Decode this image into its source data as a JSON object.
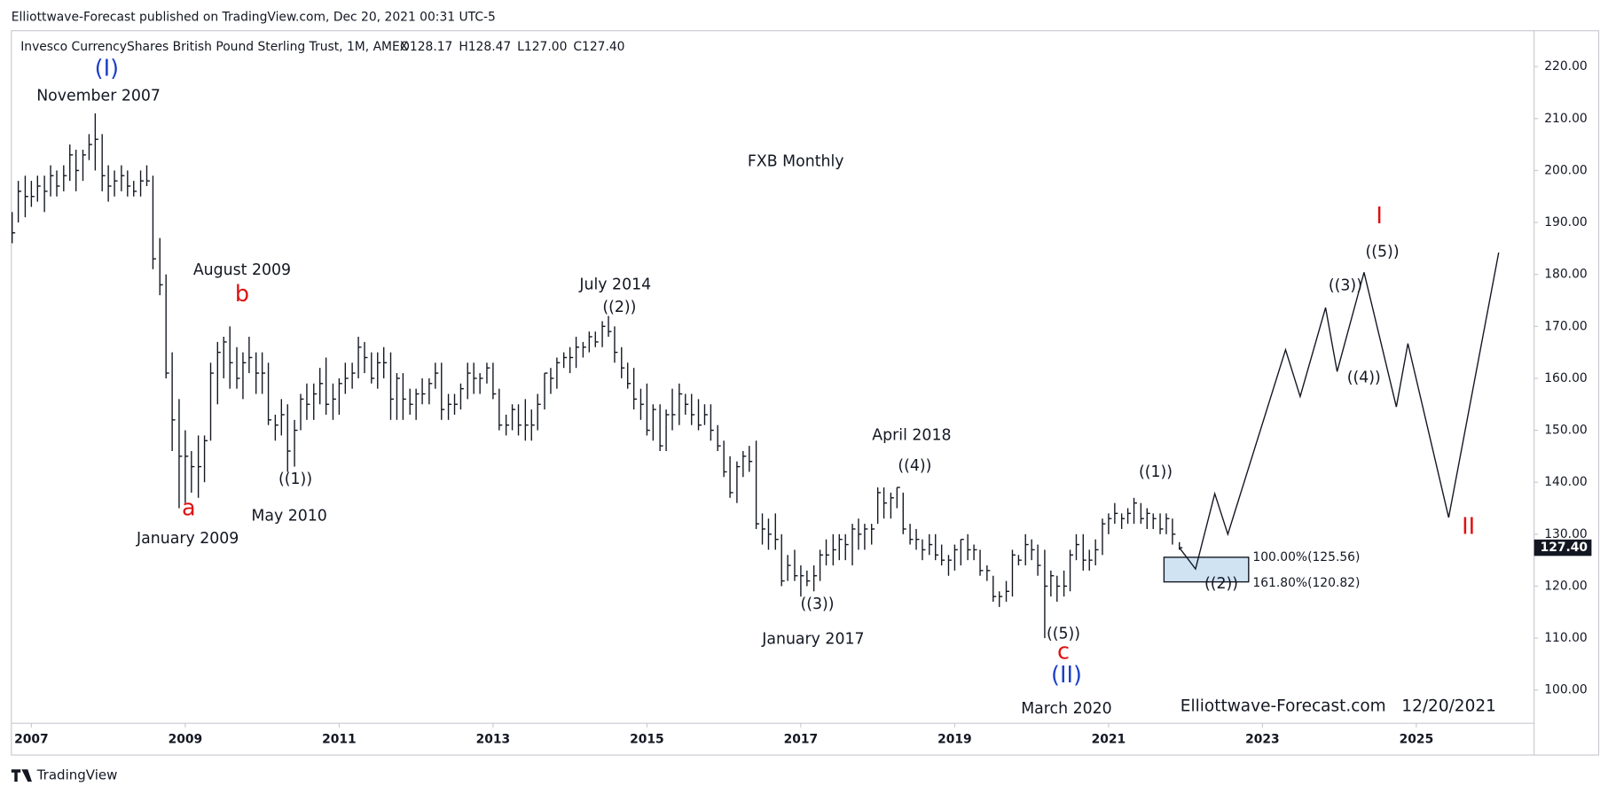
{
  "chart_data": {
    "type": "ohlc",
    "header": "Elliottwave-Forecast published on TradingView.com, Dec 20, 2021 00:31 UTC-5",
    "symbol": "Invesco CurrencyShares British Pound Sterling Trust, 1M, AMEX",
    "ohlc_legend": [
      "O128.17",
      "H128.47",
      "L127.00",
      "C127.40"
    ],
    "title": "FXB Monthly",
    "watermark": "Elliottwave-Forecast.com   12/20/2021",
    "footer": "TradingView",
    "color": "#131722",
    "x": [
      2006.75,
      2006.83,
      2006.92,
      2007.0,
      2007.08,
      2007.17,
      2007.25,
      2007.33,
      2007.42,
      2007.5,
      2007.58,
      2007.67,
      2007.75,
      2007.83,
      2007.92,
      2008.0,
      2008.08,
      2008.17,
      2008.25,
      2008.33,
      2008.42,
      2008.5,
      2008.58,
      2008.67,
      2008.75,
      2008.83,
      2008.92,
      2009.0,
      2009.08,
      2009.17,
      2009.25,
      2009.33,
      2009.42,
      2009.5,
      2009.58,
      2009.67,
      2009.75,
      2009.83,
      2009.92,
      2010.0,
      2010.08,
      2010.17,
      2010.25,
      2010.33,
      2010.42,
      2010.5,
      2010.58,
      2010.67,
      2010.75,
      2010.83,
      2010.92,
      2011.0,
      2011.08,
      2011.17,
      2011.25,
      2011.33,
      2011.42,
      2011.5,
      2011.58,
      2011.67,
      2011.75,
      2011.83,
      2011.92,
      2012.0,
      2012.08,
      2012.17,
      2012.25,
      2012.33,
      2012.42,
      2012.5,
      2012.58,
      2012.67,
      2012.75,
      2012.83,
      2012.92,
      2013.0,
      2013.08,
      2013.17,
      2013.25,
      2013.33,
      2013.42,
      2013.5,
      2013.58,
      2013.67,
      2013.75,
      2013.83,
      2013.92,
      2014.0,
      2014.08,
      2014.17,
      2014.25,
      2014.33,
      2014.42,
      2014.5,
      2014.58,
      2014.67,
      2014.75,
      2014.83,
      2014.92,
      2015.0,
      2015.08,
      2015.17,
      2015.25,
      2015.33,
      2015.42,
      2015.5,
      2015.58,
      2015.67,
      2015.75,
      2015.83,
      2015.92,
      2016.0,
      2016.08,
      2016.17,
      2016.25,
      2016.33,
      2016.42,
      2016.5,
      2016.58,
      2016.67,
      2016.75,
      2016.83,
      2016.92,
      2017.0,
      2017.08,
      2017.17,
      2017.25,
      2017.33,
      2017.42,
      2017.5,
      2017.58,
      2017.67,
      2017.75,
      2017.83,
      2017.92,
      2018.0,
      2018.08,
      2018.17,
      2018.25,
      2018.33,
      2018.42,
      2018.5,
      2018.58,
      2018.67,
      2018.75,
      2018.83,
      2018.92,
      2019.0,
      2019.08,
      2019.17,
      2019.25,
      2019.33,
      2019.42,
      2019.5,
      2019.58,
      2019.67,
      2019.75,
      2019.83,
      2019.92,
      2020.0,
      2020.08,
      2020.17,
      2020.25,
      2020.33,
      2020.42,
      2020.5,
      2020.58,
      2020.67,
      2020.75,
      2020.83,
      2020.92,
      2021.0,
      2021.08,
      2021.17,
      2021.25,
      2021.33,
      2021.42,
      2021.5,
      2021.58,
      2021.67,
      2021.75,
      2021.83,
      2021.92
    ],
    "high": [
      192,
      198,
      199,
      198,
      199,
      199,
      201,
      200,
      201,
      205,
      204,
      204,
      207,
      211,
      207,
      201,
      200,
      201,
      200,
      198,
      200,
      201,
      199,
      187,
      180,
      165,
      156,
      150,
      146,
      149,
      149,
      163,
      167,
      168,
      170,
      166,
      165,
      168,
      165,
      165,
      163,
      153,
      156,
      155,
      152,
      157,
      159,
      159,
      162,
      164,
      159,
      160,
      163,
      163,
      168,
      167,
      165,
      165,
      166,
      165,
      161,
      161,
      158,
      158,
      160,
      160,
      163,
      163,
      157,
      157,
      159,
      163,
      163,
      161,
      163,
      163,
      158,
      153,
      155,
      155,
      156,
      154,
      157,
      161,
      162,
      164,
      165,
      166,
      168,
      167,
      169,
      169,
      171,
      172,
      170,
      166,
      163,
      162,
      158,
      159,
      155,
      155,
      154,
      158,
      159,
      157,
      157,
      156,
      155,
      155,
      151,
      148,
      145,
      144,
      146,
      147,
      148,
      134,
      133,
      134,
      130,
      126,
      127,
      124,
      123,
      124,
      127,
      129,
      130,
      130,
      130,
      132,
      133,
      132,
      132,
      139,
      139,
      138,
      139,
      138,
      132,
      131,
      129,
      130,
      130,
      128,
      126,
      128,
      129,
      130,
      128,
      127,
      124,
      122,
      119,
      121,
      127,
      126,
      130,
      129,
      128,
      127,
      123,
      122,
      123,
      127,
      130,
      130,
      127,
      129,
      133,
      134,
      136,
      134,
      135,
      137,
      136,
      135,
      134,
      134,
      134,
      133,
      128.47
    ],
    "low": [
      186,
      190,
      191,
      193,
      194,
      192,
      195,
      195,
      196,
      198,
      196,
      198,
      202,
      200,
      196,
      194,
      195,
      196,
      195,
      195,
      195,
      197,
      181,
      176,
      160,
      146,
      135,
      136,
      138,
      137,
      140,
      148,
      155,
      160,
      158,
      158,
      156,
      161,
      157,
      157,
      151,
      148,
      149,
      142,
      143,
      150,
      152,
      152,
      155,
      153,
      152,
      153,
      157,
      158,
      160,
      161,
      159,
      158,
      160,
      152,
      152,
      152,
      153,
      152,
      155,
      155,
      158,
      152,
      152,
      153,
      154,
      156,
      157,
      157,
      159,
      156,
      150,
      149,
      150,
      149,
      148,
      148,
      150,
      154,
      157,
      158,
      162,
      161,
      162,
      164,
      165,
      166,
      166,
      168,
      163,
      160,
      158,
      154,
      152,
      149,
      148,
      146,
      146,
      150,
      151,
      153,
      151,
      150,
      151,
      148,
      146,
      141,
      137,
      136,
      141,
      142,
      131,
      128,
      127,
      127,
      120,
      121,
      121,
      118,
      120,
      119,
      121,
      124,
      124,
      125,
      125,
      124,
      127,
      127,
      128,
      132,
      133,
      133,
      135,
      130,
      128,
      127,
      125,
      126,
      125,
      124,
      122,
      123,
      124,
      125,
      125,
      122,
      121,
      117,
      116,
      117,
      118,
      124,
      124,
      125,
      122,
      110,
      118,
      117,
      118,
      119,
      125,
      123,
      123,
      124,
      126,
      130,
      132,
      131,
      132,
      132,
      132,
      131,
      131,
      130,
      130,
      128,
      127
    ],
    "close": [
      188,
      196,
      195,
      195,
      197,
      196,
      199,
      197,
      199,
      203,
      200,
      203,
      205,
      206,
      199,
      197,
      198,
      199,
      197,
      196,
      198,
      198,
      183,
      178,
      161,
      152,
      145,
      145,
      143,
      143,
      148,
      161,
      165,
      167,
      163,
      160,
      163,
      164,
      161,
      161,
      152,
      151,
      153,
      146,
      150,
      156,
      155,
      157,
      159,
      155,
      156,
      159,
      160,
      161,
      166,
      164,
      160,
      163,
      163,
      156,
      160,
      156,
      155,
      157,
      157,
      159,
      161,
      154,
      155,
      155,
      158,
      161,
      160,
      160,
      162,
      157,
      151,
      151,
      154,
      151,
      151,
      151,
      155,
      161,
      160,
      163,
      164,
      164,
      166,
      166,
      168,
      167,
      170,
      169,
      165,
      162,
      159,
      156,
      155,
      150,
      154,
      147,
      153,
      153,
      157,
      155,
      153,
      151,
      153,
      150,
      147,
      142,
      138,
      143,
      145,
      144,
      132,
      131,
      130,
      129,
      121,
      124,
      122,
      122,
      121,
      122,
      126,
      126,
      127,
      129,
      128,
      131,
      130,
      131,
      131,
      138,
      136,
      137,
      139,
      131,
      129,
      129,
      127,
      128,
      126,
      125,
      125,
      127,
      129,
      127,
      127,
      123,
      123,
      118,
      118,
      119,
      126,
      125,
      128,
      127,
      124,
      120,
      122,
      120,
      120,
      126,
      128,
      125,
      125,
      127,
      132,
      133,
      134,
      133,
      134,
      136,
      133,
      134,
      133,
      131,
      133,
      130,
      127.4
    ],
    "last_price": {
      "value": 127.4,
      "label": "127.40"
    },
    "projection": {
      "x": [
        2021.92,
        2022.13,
        2022.38,
        2022.55,
        2023.3,
        2023.49,
        2023.82,
        2023.97,
        2024.32,
        2024.74,
        2024.89,
        2025.42,
        2026.07
      ],
      "y": [
        127.4,
        123.3,
        137.8,
        130.0,
        165.5,
        156.5,
        173.6,
        161.3,
        180.4,
        154.5,
        166.7,
        133.2,
        184.2
      ]
    },
    "fib_box": {
      "x0": 2021.72,
      "x1": 2022.82,
      "top": 125.56,
      "bottom": 120.82,
      "color": "#cfe3f3",
      "labels": [
        "100.00%(125.56)",
        "161.80%(120.82)"
      ]
    },
    "annotations": [
      "(I)",
      "November 2007",
      "August 2009",
      "b",
      "a",
      "January 2009",
      "((1))",
      "May 2010",
      "July 2014",
      "((2))",
      "April 2018",
      "((4))",
      "((3))",
      "January 2017",
      "((5))",
      "c",
      "(II)",
      "March 2020",
      "((1))",
      "((2))",
      "((3))",
      "((5))",
      "((4))",
      "I",
      "II"
    ],
    "xlim": [
      2006.74,
      2026.53
    ],
    "ylim": [
      93.6,
      226.9
    ],
    "xticks": [
      2007,
      2009,
      2011,
      2013,
      2015,
      2017,
      2019,
      2021,
      2023,
      2025
    ],
    "yticks": [
      {
        "value": 100,
        "label": "100.00"
      },
      {
        "value": 110,
        "label": "110.00"
      },
      {
        "value": 120,
        "label": "120.00"
      },
      {
        "value": 130,
        "label": "130.00"
      },
      {
        "value": 140,
        "label": "140.00"
      },
      {
        "value": 150,
        "label": "150.00"
      },
      {
        "value": 160,
        "label": "160.00"
      },
      {
        "value": 170,
        "label": "170.00"
      },
      {
        "value": 180,
        "label": "180.00"
      },
      {
        "value": 190,
        "label": "190.00"
      },
      {
        "value": 200,
        "label": "200.00"
      },
      {
        "value": 210,
        "label": "210.00"
      },
      {
        "value": 220,
        "label": "220.00"
      }
    ],
    "grid": false
  }
}
